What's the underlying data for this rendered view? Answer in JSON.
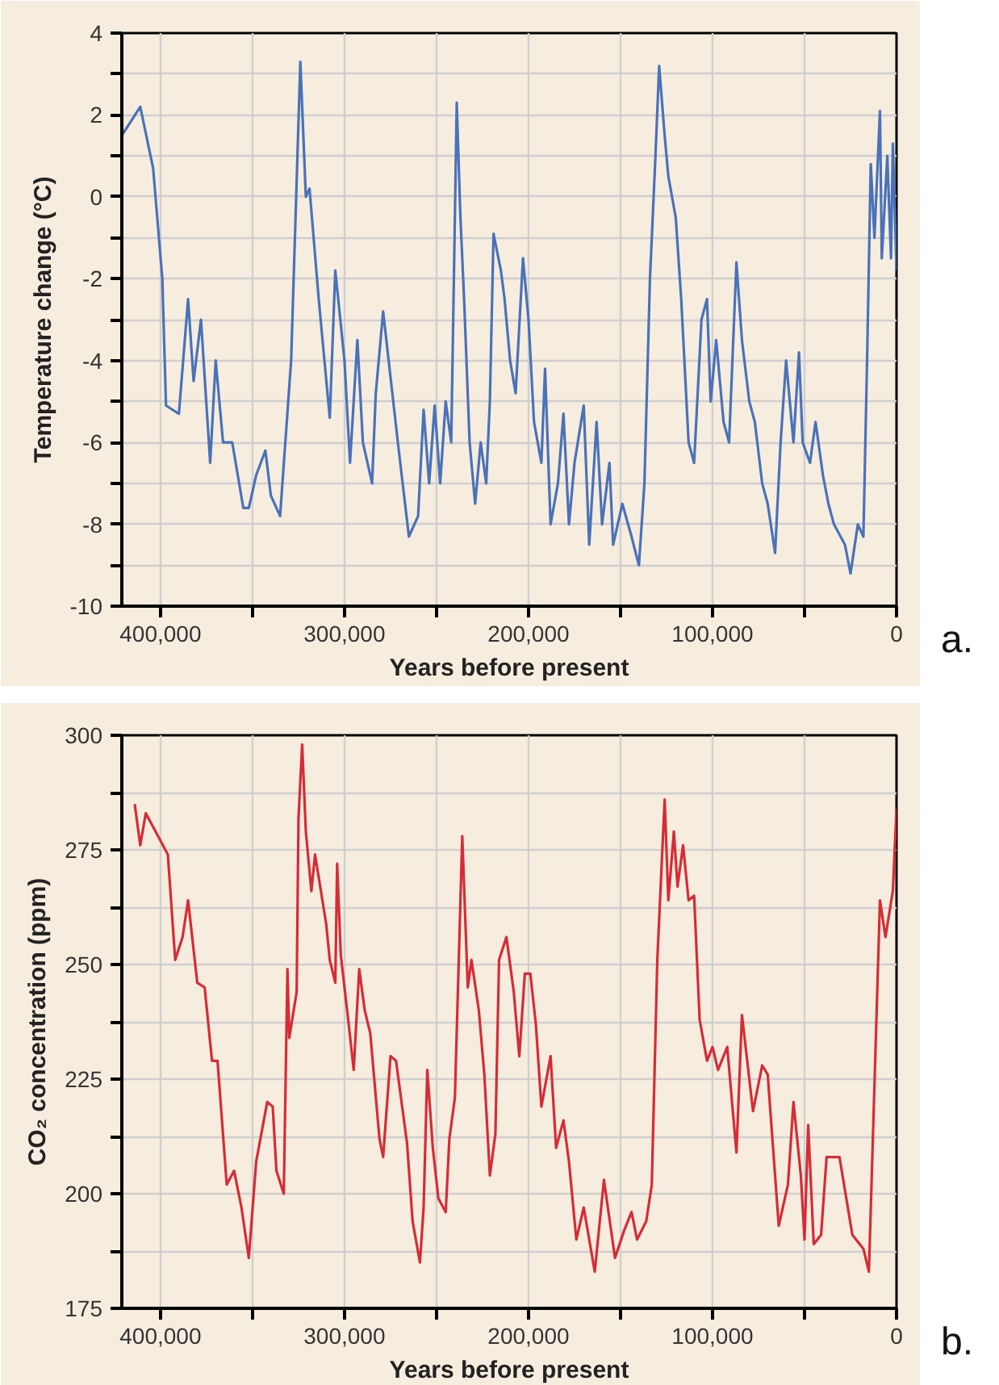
{
  "chart_data": [
    {
      "type": "line",
      "xlabel": "Years before present",
      "ylabel": "Temperature change (°C)",
      "annotations": [
        "a."
      ],
      "grid": true,
      "xlim": [
        421000,
        0
      ],
      "xticks": [
        {
          "value": 400000,
          "label": "400,000"
        },
        {
          "value": 350000,
          "label": null
        },
        {
          "value": 300000,
          "label": "300,000"
        },
        {
          "value": 250000,
          "label": null
        },
        {
          "value": 200000,
          "label": "200,000"
        },
        {
          "value": 150000,
          "label": null
        },
        {
          "value": 100000,
          "label": "100,000"
        },
        {
          "value": 50000,
          "label": null
        },
        0
      ],
      "ylim": [
        -10,
        4
      ],
      "yticks": [
        -10,
        {
          "value": -9,
          "label": null
        },
        -8,
        {
          "value": -7,
          "label": null
        },
        -6,
        {
          "value": -5,
          "label": null
        },
        -4,
        {
          "value": -3,
          "label": null
        },
        -2,
        {
          "value": -1,
          "label": null
        },
        0,
        {
          "value": 1,
          "label": null
        },
        2,
        {
          "value": 3,
          "label": null
        },
        4
      ],
      "x": [
        421000,
        411000,
        404000,
        399000,
        397000,
        390000,
        385000,
        382000,
        378000,
        373000,
        370000,
        366000,
        361000,
        355000,
        352000,
        348000,
        343000,
        340000,
        335000,
        329000,
        324000,
        321000,
        319000,
        314000,
        308000,
        305000,
        300000,
        297000,
        293000,
        290000,
        285000,
        283000,
        279000,
        271000,
        265000,
        260000,
        257000,
        254000,
        251000,
        248000,
        245000,
        242000,
        239000,
        237000,
        235000,
        232000,
        229000,
        226000,
        223000,
        221000,
        219000,
        215000,
        213000,
        210000,
        207000,
        203000,
        200000,
        197000,
        193000,
        191000,
        188000,
        184000,
        181000,
        178000,
        175000,
        170000,
        167000,
        163000,
        160000,
        156000,
        154000,
        149000,
        144000,
        140000,
        137000,
        134000,
        131000,
        129000,
        126000,
        124000,
        120000,
        117000,
        113000,
        110000,
        106000,
        103000,
        101000,
        98000,
        94000,
        91000,
        87000,
        84000,
        80000,
        77000,
        73000,
        70000,
        66000,
        63000,
        60000,
        56000,
        53000,
        51000,
        47000,
        44000,
        40000,
        37000,
        34000,
        28000,
        25000,
        21000,
        18000,
        16000,
        14000,
        12000,
        9000,
        8000,
        5000,
        3000,
        2000,
        0
      ],
      "series": [
        {
          "color": "#4a72b8",
          "values": [
            1.5,
            2.2,
            0.7,
            -2.0,
            -5.1,
            -5.3,
            -2.5,
            -4.5,
            -3.0,
            -6.5,
            -4.0,
            -6.0,
            -6.0,
            -7.6,
            -7.6,
            -6.8,
            -6.2,
            -7.3,
            -7.8,
            -4.0,
            3.3,
            0.0,
            0.2,
            -2.5,
            -5.4,
            -1.8,
            -4.0,
            -6.5,
            -3.5,
            -6.0,
            -7.0,
            -4.8,
            -2.8,
            -6.0,
            -8.3,
            -7.8,
            -5.2,
            -7.0,
            -5.1,
            -7.0,
            -5.0,
            -6.0,
            2.3,
            -0.5,
            -2.5,
            -6.0,
            -7.5,
            -6.0,
            -7.0,
            -5.0,
            -0.9,
            -1.8,
            -2.5,
            -4.0,
            -4.8,
            -1.5,
            -3.0,
            -5.5,
            -6.5,
            -4.2,
            -8.0,
            -7.0,
            -5.3,
            -8.0,
            -6.5,
            -5.1,
            -8.5,
            -5.5,
            -8.0,
            -6.5,
            -8.5,
            -7.5,
            -8.3,
            -9.0,
            -7.0,
            -2.0,
            1.0,
            3.2,
            1.5,
            0.5,
            -0.5,
            -2.5,
            -6.0,
            -6.5,
            -3.0,
            -2.5,
            -5.0,
            -3.5,
            -5.5,
            -6.0,
            -1.6,
            -3.5,
            -5.0,
            -5.5,
            -7.0,
            -7.5,
            -8.7,
            -6.0,
            -4.0,
            -6.0,
            -3.8,
            -6.0,
            -6.5,
            -5.5,
            -6.8,
            -7.5,
            -8.0,
            -8.5,
            -9.2,
            -8.0,
            -8.3,
            -4.0,
            0.8,
            -1.0,
            2.1,
            -1.5,
            1.0,
            -1.5,
            1.3,
            -1.8
          ]
        }
      ]
    },
    {
      "type": "line",
      "xlabel": "Years before present",
      "ylabel": "CO₂ concentration (ppm)",
      "annotations": [
        "b."
      ],
      "grid": true,
      "xlim": [
        421000,
        0
      ],
      "xticks": [
        {
          "value": 400000,
          "label": "400,000"
        },
        {
          "value": 350000,
          "label": null
        },
        {
          "value": 300000,
          "label": "300,000"
        },
        {
          "value": 250000,
          "label": null
        },
        {
          "value": 200000,
          "label": "200,000"
        },
        {
          "value": 150000,
          "label": null
        },
        {
          "value": 100000,
          "label": "100,000"
        },
        {
          "value": 50000,
          "label": null
        },
        0
      ],
      "ylim": [
        175,
        300
      ],
      "yticks": [
        175,
        {
          "value": 187.5,
          "label": null
        },
        200,
        {
          "value": 212.5,
          "label": null
        },
        225,
        {
          "value": 237.5,
          "label": null
        },
        250,
        {
          "value": 262.5,
          "label": null
        },
        275,
        {
          "value": 287.5,
          "label": null
        },
        300
      ],
      "x": [
        414000,
        411000,
        408000,
        404000,
        396000,
        392000,
        388000,
        385000,
        380000,
        376000,
        372000,
        369000,
        364000,
        360000,
        356000,
        352000,
        348000,
        342000,
        339000,
        337000,
        333000,
        331000,
        330000,
        326000,
        325000,
        323000,
        321000,
        318000,
        316000,
        310000,
        308000,
        305000,
        304000,
        302000,
        298000,
        295000,
        292000,
        289000,
        286000,
        281000,
        279000,
        275000,
        272000,
        266000,
        263000,
        259000,
        257000,
        255000,
        252000,
        249000,
        245000,
        243000,
        240000,
        236000,
        233000,
        231000,
        227000,
        224000,
        221000,
        218000,
        216000,
        212000,
        208000,
        205000,
        202000,
        199000,
        196000,
        193000,
        188000,
        185000,
        181000,
        178000,
        174000,
        170000,
        164000,
        159000,
        153000,
        148000,
        144000,
        141000,
        136000,
        133000,
        130000,
        126000,
        124000,
        121000,
        119000,
        116000,
        113000,
        110000,
        107000,
        103000,
        100000,
        97000,
        92000,
        87000,
        84000,
        78000,
        73000,
        70000,
        64000,
        59000,
        56000,
        52000,
        50000,
        48000,
        45000,
        41000,
        38000,
        31000,
        24000,
        18000,
        15000,
        11000,
        9000,
        6000,
        2000,
        0
      ],
      "series": [
        {
          "color": "#d62c36",
          "values": [
            285,
            276,
            283,
            280,
            274,
            251,
            256,
            264,
            246,
            245,
            229,
            229,
            202,
            205,
            197,
            186,
            207,
            220,
            219,
            205,
            200,
            249,
            234,
            244,
            282,
            298,
            279,
            266,
            274,
            259,
            251,
            246,
            272,
            252,
            238,
            227,
            249,
            240,
            235,
            212,
            208,
            230,
            229,
            211,
            194,
            185,
            197,
            227,
            210,
            199,
            196,
            212,
            221,
            278,
            245,
            251,
            240,
            226,
            204,
            213,
            251,
            256,
            244,
            230,
            248,
            248,
            237,
            219,
            230,
            210,
            216,
            207,
            190,
            197,
            183,
            203,
            186,
            192,
            196,
            190,
            194,
            202,
            251,
            286,
            264,
            279,
            267,
            276,
            264,
            265,
            238,
            229,
            232,
            227,
            232,
            209,
            239,
            218,
            228,
            226,
            193,
            202,
            220,
            204,
            190,
            215,
            189,
            191,
            208,
            208,
            191,
            188,
            183,
            237,
            264,
            256,
            266,
            284
          ]
        }
      ]
    }
  ]
}
